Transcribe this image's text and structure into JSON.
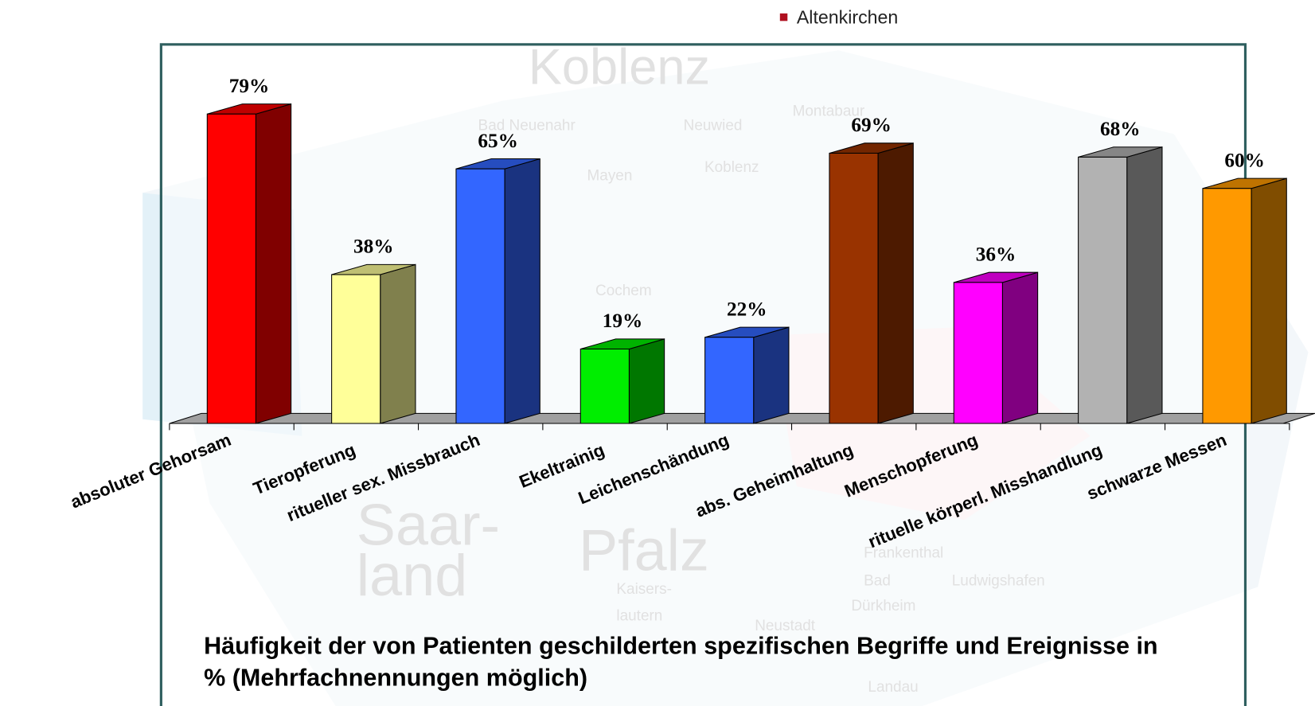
{
  "chart_data": {
    "type": "bar3d",
    "title": "Häufigkeit der von Patienten geschilderten spezifischen Begriffe und Ereignisse in % (Mehrfachnennungen möglich)",
    "categories": [
      "absoluter Gehorsam",
      "Tieropferung",
      "ritueller sex. Missbrauch",
      "Ekeltrainig",
      "Leichenschändung",
      "abs. Geheimhaltung",
      "Menschopferung",
      "rituelle körperl. Misshandlung",
      "schwarze Messen"
    ],
    "values": [
      79,
      38,
      65,
      19,
      22,
      69,
      36,
      68,
      60
    ],
    "value_labels": [
      "79%",
      "38%",
      "65%",
      "19%",
      "22%",
      "69%",
      "36%",
      "68%",
      "60%"
    ],
    "colors": [
      "#ff0000",
      "#ffff99",
      "#3366ff",
      "#00ee00",
      "#3366ff",
      "#993300",
      "#ff00ff",
      "#b2b2b2",
      "#ff9900"
    ],
    "background_labels": [
      "Altenkirchen",
      "Koblenz",
      "Bad Neuenahr",
      "Neuwied",
      "Montabaur",
      "Mayen",
      "Koblenz",
      "Cochem",
      "Saar-",
      "land",
      "Pfalz",
      "Frankenthal",
      "Ludwigshafen",
      "Bad",
      "Dürkheim",
      "Kaisers-",
      "lautern",
      "Neustadt",
      "Landau"
    ]
  }
}
